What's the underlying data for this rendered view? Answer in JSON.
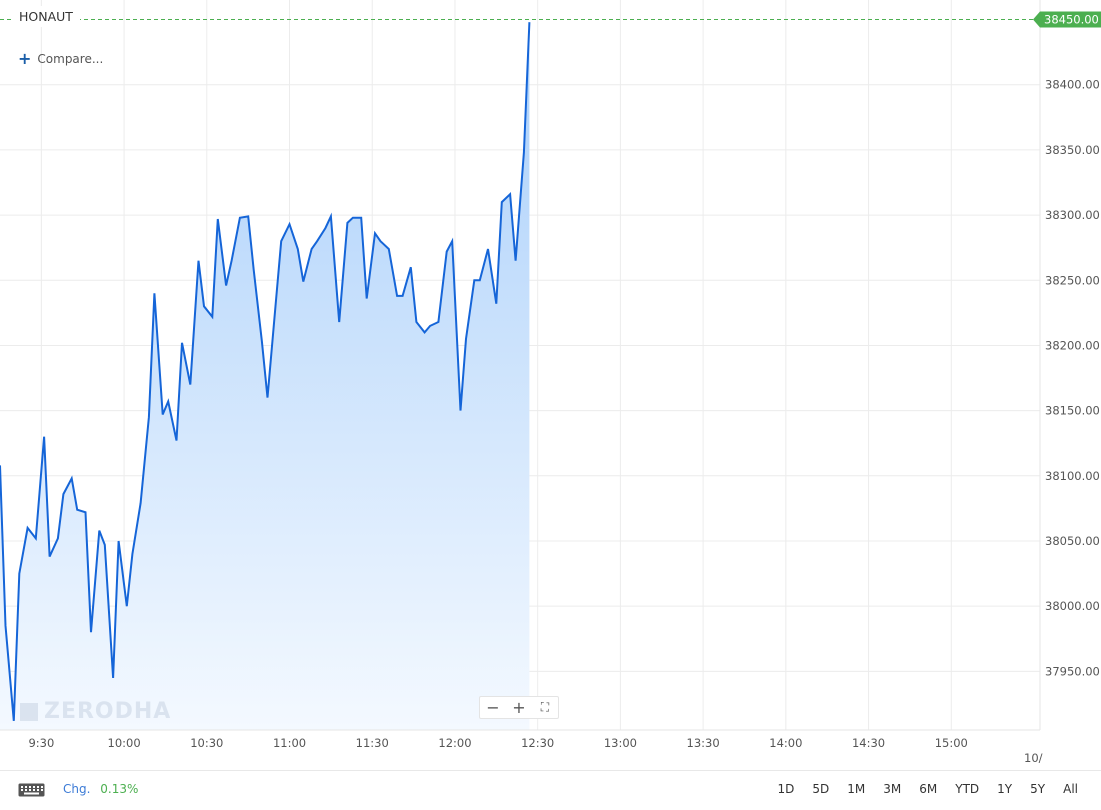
{
  "symbol": "HONAUT",
  "compare_label": "Compare...",
  "watermark": "ZERODHA",
  "zoom": {
    "out": "−",
    "in": "+",
    "fullscreen": "⛶"
  },
  "footer": {
    "change_label": "Chg.",
    "change_value": "0.13%",
    "ranges": [
      "1D",
      "5D",
      "1M",
      "3M",
      "6M",
      "YTD",
      "1Y",
      "5Y",
      "All"
    ]
  },
  "colors": {
    "line": "#1565d8",
    "fill_top": "#a9cffa",
    "fill_bottom": "#f4f9ff",
    "last_price": "#4caf50"
  },
  "chart_data": {
    "type": "area",
    "x_time_range": [
      "09:15",
      "15:30"
    ],
    "x_ticks": [
      "9:30",
      "10:00",
      "10:30",
      "11:00",
      "11:30",
      "12:00",
      "12:30",
      "13:00",
      "13:30",
      "14:00",
      "14:30",
      "15:00",
      "10/"
    ],
    "y_ticks": [
      37950,
      38000,
      38050,
      38100,
      38150,
      38200,
      38250,
      38300,
      38350,
      38400
    ],
    "y_tick_labels": [
      "37950.00",
      "38000.00",
      "38050.00",
      "38100.00",
      "38150.00",
      "38200.00",
      "38250.00",
      "38300.00",
      "38350.00",
      "38400.00"
    ],
    "ylim": [
      37905,
      38465
    ],
    "last_price": 38450,
    "last_price_label": "38450.00",
    "grid": true,
    "series": [
      {
        "values": [
          [
            "09:15",
            38108
          ],
          [
            "09:17",
            37985
          ],
          [
            "09:20",
            37912
          ],
          [
            "09:22",
            38025
          ],
          [
            "09:25",
            38060
          ],
          [
            "09:28",
            38052
          ],
          [
            "09:31",
            38130
          ],
          [
            "09:33",
            38038
          ],
          [
            "09:36",
            38052
          ],
          [
            "09:38",
            38086
          ],
          [
            "09:41",
            38098
          ],
          [
            "09:43",
            38074
          ],
          [
            "09:46",
            38072
          ],
          [
            "09:48",
            37980
          ],
          [
            "09:51",
            38058
          ],
          [
            "09:53",
            38047
          ],
          [
            "09:56",
            37945
          ],
          [
            "09:58",
            38050
          ],
          [
            "10:01",
            38000
          ],
          [
            "10:03",
            38040
          ],
          [
            "10:06",
            38079
          ],
          [
            "10:09",
            38145
          ],
          [
            "10:11",
            38240
          ],
          [
            "10:14",
            38147
          ],
          [
            "10:16",
            38157
          ],
          [
            "10:19",
            38127
          ],
          [
            "10:21",
            38202
          ],
          [
            "10:24",
            38170
          ],
          [
            "10:27",
            38265
          ],
          [
            "10:29",
            38230
          ],
          [
            "10:32",
            38222
          ],
          [
            "10:34",
            38297
          ],
          [
            "10:37",
            38246
          ],
          [
            "10:39",
            38265
          ],
          [
            "10:42",
            38298
          ],
          [
            "10:45",
            38299
          ],
          [
            "10:47",
            38258
          ],
          [
            "10:50",
            38203
          ],
          [
            "10:52",
            38160
          ],
          [
            "10:55",
            38232
          ],
          [
            "10:57",
            38280
          ],
          [
            "11:00",
            38293
          ],
          [
            "11:03",
            38274
          ],
          [
            "11:05",
            38249
          ],
          [
            "11:08",
            38274
          ],
          [
            "11:10",
            38280
          ],
          [
            "11:13",
            38290
          ],
          [
            "11:15",
            38299
          ],
          [
            "11:18",
            38218
          ],
          [
            "11:21",
            38294
          ],
          [
            "11:23",
            38298
          ],
          [
            "11:26",
            38298
          ],
          [
            "11:28",
            38236
          ],
          [
            "11:31",
            38286
          ],
          [
            "11:33",
            38280
          ],
          [
            "11:36",
            38274
          ],
          [
            "11:39",
            38238
          ],
          [
            "11:41",
            38238
          ],
          [
            "11:44",
            38260
          ],
          [
            "11:46",
            38218
          ],
          [
            "11:49",
            38210
          ],
          [
            "11:51",
            38215
          ],
          [
            "11:54",
            38218
          ],
          [
            "11:57",
            38272
          ],
          [
            "11:59",
            38280
          ],
          [
            "12:02",
            38150
          ],
          [
            "12:04",
            38205
          ],
          [
            "12:07",
            38250
          ],
          [
            "12:09",
            38250
          ],
          [
            "12:12",
            38274
          ],
          [
            "12:15",
            38232
          ],
          [
            "12:17",
            38310
          ],
          [
            "12:20",
            38316
          ],
          [
            "12:22",
            38265
          ],
          [
            "12:25",
            38348
          ],
          [
            "12:27",
            38448
          ]
        ]
      }
    ]
  }
}
